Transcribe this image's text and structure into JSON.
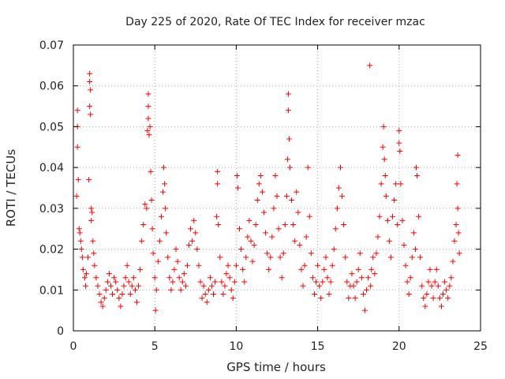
{
  "chart_data": {
    "type": "scatter",
    "title": "Day 225 of 2020, Rate Of TEC Index for receiver mzac",
    "xlabel": "GPS time / hours",
    "ylabel": "ROTI / TECUs",
    "xlim": [
      0,
      25
    ],
    "ylim": [
      0,
      0.07
    ],
    "x_ticks": [
      0,
      5,
      10,
      15,
      20,
      25
    ],
    "x_tick_labels": [
      "0",
      "5",
      "10",
      "15",
      "20",
      "25"
    ],
    "y_ticks": [
      0,
      0.01,
      0.02,
      0.03,
      0.04,
      0.05,
      0.06,
      0.07
    ],
    "y_tick_labels": [
      "0",
      "0.01",
      "0.02",
      "0.03",
      "0.04",
      "0.05",
      "0.06",
      "0.07"
    ],
    "grid": true,
    "marker": "+",
    "color": "#ff0000",
    "series": [
      {
        "name": "ROTI",
        "points": [
          [
            0.2,
            0.033
          ],
          [
            0.25,
            0.054
          ],
          [
            0.25,
            0.045
          ],
          [
            0.25,
            0.05
          ],
          [
            0.3,
            0.037
          ],
          [
            0.35,
            0.025
          ],
          [
            0.4,
            0.024
          ],
          [
            0.45,
            0.022
          ],
          [
            0.5,
            0.02
          ],
          [
            0.55,
            0.018
          ],
          [
            0.6,
            0.015
          ],
          [
            0.7,
            0.013
          ],
          [
            0.75,
            0.011
          ],
          [
            0.8,
            0.014
          ],
          [
            0.9,
            0.018
          ],
          [
            0.95,
            0.037
          ],
          [
            1.0,
            0.063
          ],
          [
            1.0,
            0.061
          ],
          [
            1.0,
            0.055
          ],
          [
            1.05,
            0.053
          ],
          [
            1.05,
            0.059
          ],
          [
            1.1,
            0.03
          ],
          [
            1.1,
            0.027
          ],
          [
            1.15,
            0.029
          ],
          [
            1.2,
            0.022
          ],
          [
            1.25,
            0.019
          ],
          [
            1.3,
            0.016
          ],
          [
            1.4,
            0.013
          ],
          [
            1.5,
            0.011
          ],
          [
            1.6,
            0.009
          ],
          [
            1.7,
            0.007
          ],
          [
            1.8,
            0.006
          ],
          [
            1.9,
            0.008
          ],
          [
            2.0,
            0.01
          ],
          [
            2.1,
            0.012
          ],
          [
            2.2,
            0.014
          ],
          [
            2.3,
            0.011
          ],
          [
            2.4,
            0.009
          ],
          [
            2.5,
            0.013
          ],
          [
            2.6,
            0.012
          ],
          [
            2.7,
            0.01
          ],
          [
            2.8,
            0.008
          ],
          [
            2.9,
            0.006
          ],
          [
            3.0,
            0.009
          ],
          [
            3.1,
            0.011
          ],
          [
            3.2,
            0.013
          ],
          [
            3.3,
            0.016
          ],
          [
            3.4,
            0.012
          ],
          [
            3.5,
            0.009
          ],
          [
            3.6,
            0.011
          ],
          [
            3.7,
            0.013
          ],
          [
            3.8,
            0.01
          ],
          [
            3.9,
            0.007
          ],
          [
            4.0,
            0.011
          ],
          [
            4.1,
            0.015
          ],
          [
            4.2,
            0.022
          ],
          [
            4.3,
            0.026
          ],
          [
            4.4,
            0.031
          ],
          [
            4.5,
            0.03
          ],
          [
            4.55,
            0.049
          ],
          [
            4.6,
            0.058
          ],
          [
            4.6,
            0.055
          ],
          [
            4.6,
            0.052
          ],
          [
            4.65,
            0.048
          ],
          [
            4.7,
            0.05
          ],
          [
            4.75,
            0.039
          ],
          [
            4.8,
            0.032
          ],
          [
            4.85,
            0.025
          ],
          [
            4.9,
            0.019
          ],
          [
            5.0,
            0.013
          ],
          [
            5.05,
            0.005
          ],
          [
            5.1,
            0.01
          ],
          [
            5.2,
            0.017
          ],
          [
            5.3,
            0.022
          ],
          [
            5.4,
            0.028
          ],
          [
            5.5,
            0.034
          ],
          [
            5.55,
            0.04
          ],
          [
            5.6,
            0.036
          ],
          [
            5.65,
            0.03
          ],
          [
            5.7,
            0.024
          ],
          [
            5.8,
            0.018
          ],
          [
            5.9,
            0.013
          ],
          [
            6.0,
            0.01
          ],
          [
            6.1,
            0.012
          ],
          [
            6.2,
            0.015
          ],
          [
            6.3,
            0.02
          ],
          [
            6.4,
            0.017
          ],
          [
            6.5,
            0.013
          ],
          [
            6.6,
            0.01
          ],
          [
            6.7,
            0.012
          ],
          [
            6.8,
            0.014
          ],
          [
            6.9,
            0.011
          ],
          [
            7.0,
            0.016
          ],
          [
            7.1,
            0.021
          ],
          [
            7.2,
            0.025
          ],
          [
            7.3,
            0.022
          ],
          [
            7.4,
            0.027
          ],
          [
            7.5,
            0.024
          ],
          [
            7.6,
            0.02
          ],
          [
            7.7,
            0.016
          ],
          [
            7.8,
            0.012
          ],
          [
            7.9,
            0.008
          ],
          [
            8.0,
            0.011
          ],
          [
            8.1,
            0.009
          ],
          [
            8.2,
            0.007
          ],
          [
            8.3,
            0.01
          ],
          [
            8.4,
            0.013
          ],
          [
            8.5,
            0.011
          ],
          [
            8.6,
            0.009
          ],
          [
            8.7,
            0.012
          ],
          [
            8.8,
            0.028
          ],
          [
            8.85,
            0.039
          ],
          [
            8.85,
            0.036
          ],
          [
            8.9,
            0.026
          ],
          [
            9.0,
            0.018
          ],
          [
            9.1,
            0.012
          ],
          [
            9.2,
            0.009
          ],
          [
            9.3,
            0.011
          ],
          [
            9.4,
            0.014
          ],
          [
            9.5,
            0.016
          ],
          [
            9.6,
            0.013
          ],
          [
            9.7,
            0.01
          ],
          [
            9.8,
            0.008
          ],
          [
            9.9,
            0.012
          ],
          [
            10.0,
            0.016
          ],
          [
            10.05,
            0.038
          ],
          [
            10.1,
            0.035
          ],
          [
            10.2,
            0.025
          ],
          [
            10.3,
            0.02
          ],
          [
            10.4,
            0.015
          ],
          [
            10.5,
            0.012
          ],
          [
            10.6,
            0.018
          ],
          [
            10.7,
            0.023
          ],
          [
            10.8,
            0.027
          ],
          [
            10.9,
            0.022
          ],
          [
            11.0,
            0.017
          ],
          [
            11.1,
            0.021
          ],
          [
            11.2,
            0.026
          ],
          [
            11.3,
            0.032
          ],
          [
            11.4,
            0.036
          ],
          [
            11.5,
            0.038
          ],
          [
            11.6,
            0.034
          ],
          [
            11.7,
            0.029
          ],
          [
            11.8,
            0.024
          ],
          [
            11.9,
            0.019
          ],
          [
            12.0,
            0.015
          ],
          [
            12.1,
            0.018
          ],
          [
            12.2,
            0.023
          ],
          [
            12.3,
            0.03
          ],
          [
            12.4,
            0.038
          ],
          [
            12.5,
            0.033
          ],
          [
            12.6,
            0.025
          ],
          [
            12.7,
            0.018
          ],
          [
            12.8,
            0.013
          ],
          [
            12.9,
            0.019
          ],
          [
            13.0,
            0.026
          ],
          [
            13.1,
            0.033
          ],
          [
            13.15,
            0.042
          ],
          [
            13.2,
            0.058
          ],
          [
            13.2,
            0.054
          ],
          [
            13.25,
            0.047
          ],
          [
            13.3,
            0.04
          ],
          [
            13.4,
            0.032
          ],
          [
            13.5,
            0.026
          ],
          [
            13.6,
            0.022
          ],
          [
            13.7,
            0.034
          ],
          [
            13.8,
            0.029
          ],
          [
            13.9,
            0.021
          ],
          [
            14.0,
            0.015
          ],
          [
            14.1,
            0.011
          ],
          [
            14.2,
            0.016
          ],
          [
            14.3,
            0.023
          ],
          [
            14.4,
            0.04
          ],
          [
            14.5,
            0.028
          ],
          [
            14.6,
            0.019
          ],
          [
            14.7,
            0.013
          ],
          [
            14.8,
            0.009
          ],
          [
            14.9,
            0.012
          ],
          [
            15.0,
            0.016
          ],
          [
            15.1,
            0.011
          ],
          [
            15.2,
            0.008
          ],
          [
            15.3,
            0.012
          ],
          [
            15.4,
            0.015
          ],
          [
            15.5,
            0.018
          ],
          [
            15.6,
            0.013
          ],
          [
            15.7,
            0.009
          ],
          [
            15.8,
            0.012
          ],
          [
            15.9,
            0.016
          ],
          [
            16.0,
            0.02
          ],
          [
            16.1,
            0.025
          ],
          [
            16.2,
            0.03
          ],
          [
            16.3,
            0.035
          ],
          [
            16.4,
            0.04
          ],
          [
            16.5,
            0.033
          ],
          [
            16.6,
            0.026
          ],
          [
            16.7,
            0.018
          ],
          [
            16.8,
            0.012
          ],
          [
            16.9,
            0.008
          ],
          [
            17.0,
            0.011
          ],
          [
            17.1,
            0.014
          ],
          [
            17.2,
            0.011
          ],
          [
            17.3,
            0.008
          ],
          [
            17.4,
            0.012
          ],
          [
            17.5,
            0.015
          ],
          [
            17.6,
            0.019
          ],
          [
            17.7,
            0.013
          ],
          [
            17.8,
            0.009
          ],
          [
            17.9,
            0.005
          ],
          [
            18.0,
            0.01
          ],
          [
            18.1,
            0.013
          ],
          [
            18.2,
            0.065
          ],
          [
            18.25,
            0.011
          ],
          [
            18.3,
            0.015
          ],
          [
            18.4,
            0.018
          ],
          [
            18.5,
            0.014
          ],
          [
            18.6,
            0.019
          ],
          [
            18.7,
            0.023
          ],
          [
            18.8,
            0.028
          ],
          [
            18.9,
            0.036
          ],
          [
            19.0,
            0.045
          ],
          [
            19.05,
            0.05
          ],
          [
            19.1,
            0.042
          ],
          [
            19.15,
            0.038
          ],
          [
            19.2,
            0.033
          ],
          [
            19.3,
            0.027
          ],
          [
            19.4,
            0.022
          ],
          [
            19.5,
            0.018
          ],
          [
            19.6,
            0.028
          ],
          [
            19.7,
            0.032
          ],
          [
            19.8,
            0.036
          ],
          [
            19.9,
            0.026
          ],
          [
            20.0,
            0.046
          ],
          [
            20.0,
            0.049
          ],
          [
            20.05,
            0.044
          ],
          [
            20.1,
            0.036
          ],
          [
            20.2,
            0.027
          ],
          [
            20.3,
            0.021
          ],
          [
            20.4,
            0.016
          ],
          [
            20.5,
            0.012
          ],
          [
            20.6,
            0.009
          ],
          [
            20.7,
            0.013
          ],
          [
            20.8,
            0.018
          ],
          [
            20.9,
            0.024
          ],
          [
            21.0,
            0.02
          ],
          [
            21.05,
            0.04
          ],
          [
            21.1,
            0.038
          ],
          [
            21.2,
            0.028
          ],
          [
            21.3,
            0.018
          ],
          [
            21.4,
            0.011
          ],
          [
            21.5,
            0.008
          ],
          [
            21.6,
            0.006
          ],
          [
            21.7,
            0.009
          ],
          [
            21.8,
            0.012
          ],
          [
            21.9,
            0.015
          ],
          [
            22.0,
            0.011
          ],
          [
            22.1,
            0.008
          ],
          [
            22.2,
            0.012
          ],
          [
            22.3,
            0.015
          ],
          [
            22.4,
            0.011
          ],
          [
            22.5,
            0.008
          ],
          [
            22.6,
            0.006
          ],
          [
            22.7,
            0.009
          ],
          [
            22.8,
            0.012
          ],
          [
            22.9,
            0.01
          ],
          [
            23.0,
            0.008
          ],
          [
            23.1,
            0.011
          ],
          [
            23.2,
            0.013
          ],
          [
            23.3,
            0.017
          ],
          [
            23.4,
            0.022
          ],
          [
            23.5,
            0.026
          ],
          [
            23.55,
            0.036
          ],
          [
            23.6,
            0.03
          ],
          [
            23.6,
            0.043
          ],
          [
            23.65,
            0.024
          ],
          [
            23.7,
            0.019
          ]
        ]
      }
    ]
  }
}
